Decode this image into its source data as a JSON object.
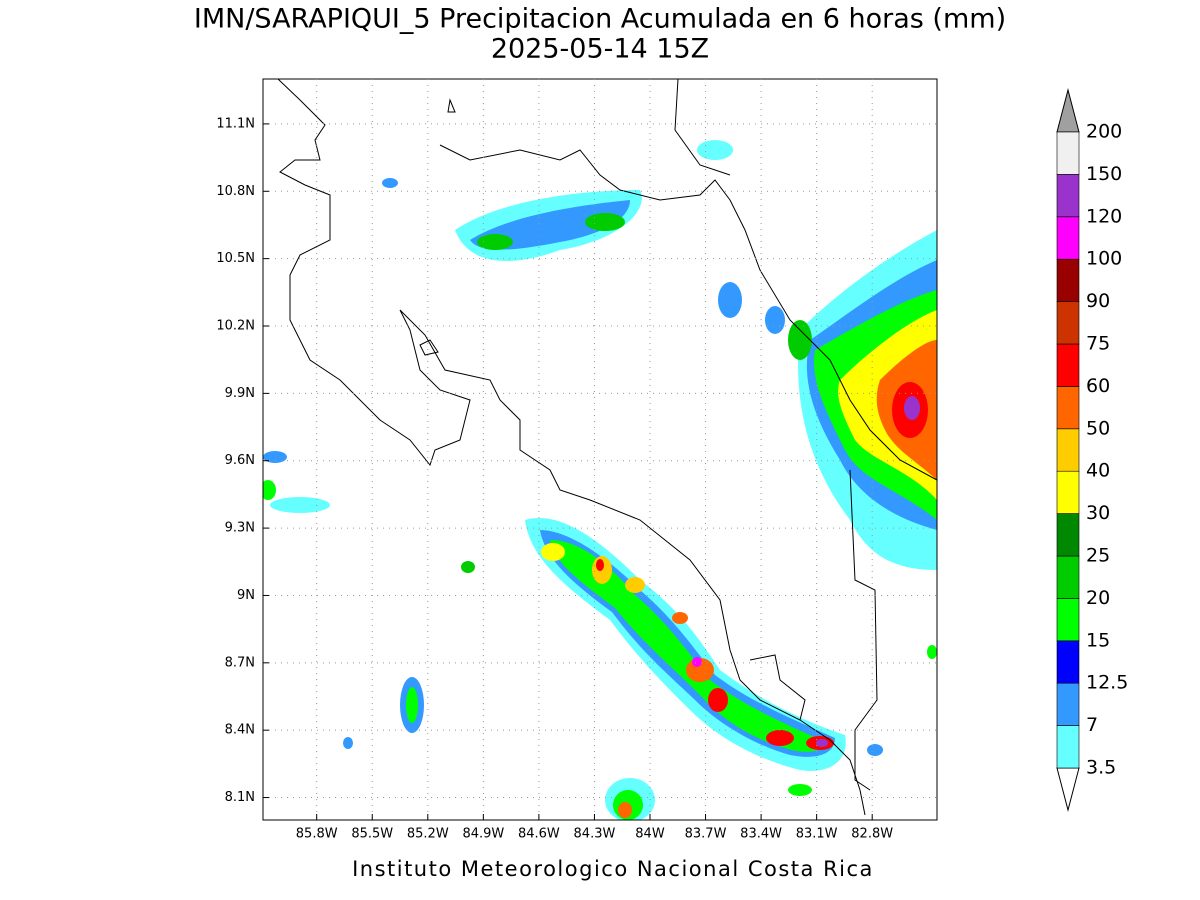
{
  "title": "IMN/SARAPIQUI_5 Precipitacion Acumulada en 6 horas (mm)",
  "subtitle": "2025-05-14 15Z",
  "footer": "Instituto Meteorologico Nacional Costa Rica",
  "map": {
    "xlim": [
      -86.09,
      -82.45
    ],
    "ylim": [
      8.0,
      11.3
    ],
    "grid": true,
    "lon_ticks": [
      {
        "value": -85.8,
        "label": "85.8W"
      },
      {
        "value": -85.5,
        "label": "85.5W"
      },
      {
        "value": -85.2,
        "label": "85.2W"
      },
      {
        "value": -84.9,
        "label": "84.9W"
      },
      {
        "value": -84.6,
        "label": "84.6W"
      },
      {
        "value": -84.3,
        "label": "84.3W"
      },
      {
        "value": -84.0,
        "label": "84W"
      },
      {
        "value": -83.7,
        "label": "83.7W"
      },
      {
        "value": -83.4,
        "label": "83.4W"
      },
      {
        "value": -83.1,
        "label": "83.1W"
      },
      {
        "value": -82.8,
        "label": "82.8W"
      }
    ],
    "lat_ticks": [
      {
        "value": 8.1,
        "label": "8.1N"
      },
      {
        "value": 8.4,
        "label": "8.4N"
      },
      {
        "value": 8.7,
        "label": "8.7N"
      },
      {
        "value": 9.0,
        "label": "9N"
      },
      {
        "value": 9.3,
        "label": "9.3N"
      },
      {
        "value": 9.6,
        "label": "9.6N"
      },
      {
        "value": 9.9,
        "label": "9.9N"
      },
      {
        "value": 10.2,
        "label": "10.2N"
      },
      {
        "value": 10.5,
        "label": "10.5N"
      },
      {
        "value": 10.8,
        "label": "10.8N"
      },
      {
        "value": 11.1,
        "label": "11.1N"
      }
    ]
  },
  "colorbar": {
    "levels": [
      3.5,
      7,
      12.5,
      15,
      20,
      25,
      30,
      40,
      50,
      60,
      75,
      90,
      100,
      120,
      150,
      200
    ],
    "colors": [
      "#66ffff",
      "#3399ff",
      "#0000ff",
      "#00ff00",
      "#00cc00",
      "#008800",
      "#ffff00",
      "#ffcc00",
      "#ff6600",
      "#ff0000",
      "#cc3300",
      "#990000",
      "#ff00ff",
      "#9933cc",
      "#f0f0f0"
    ],
    "under": "#ffffff",
    "over": "#a0a0a0"
  }
}
